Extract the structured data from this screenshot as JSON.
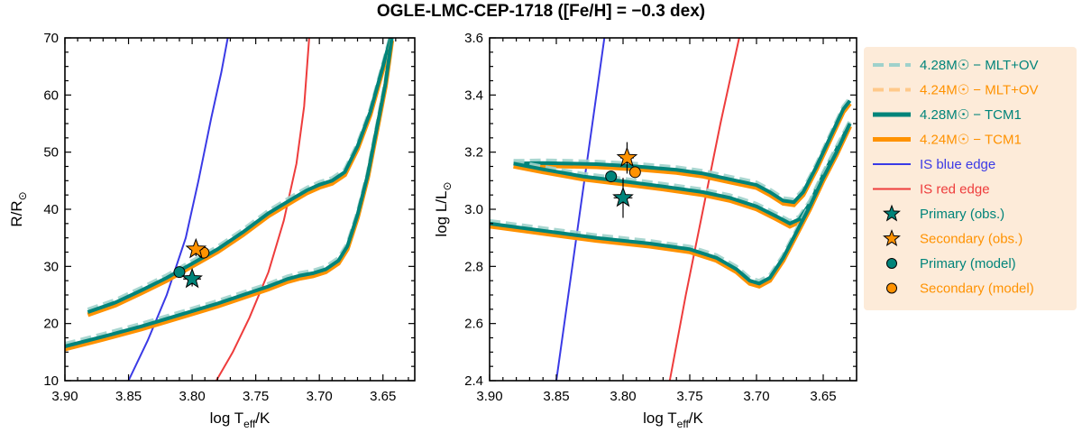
{
  "title": "OGLE-LMC-CEP-1718 ([Fe/H] = −0.3 dex)",
  "colors": {
    "teal": "#00847a",
    "teal_dash": "#9fd1cb",
    "orange": "#ff9200",
    "orange_dash": "#ffc98a",
    "blue_edge": "#3a3ae6",
    "red_edge": "#ee3c3c",
    "legend_bg": "#fdebd9"
  },
  "legend": [
    {
      "label": "4.28M☉ − MLT+OV",
      "style": "dashed",
      "color": "teal_dash",
      "text_color": "teal"
    },
    {
      "label": "4.24M☉ − MLT+OV",
      "style": "dashed",
      "color": "orange_dash",
      "text_color": "orange"
    },
    {
      "label": "4.28M☉ − TCM1",
      "style": "solid-thick",
      "color": "teal",
      "text_color": "teal"
    },
    {
      "label": "4.24M☉ − TCM1",
      "style": "solid-thick",
      "color": "orange",
      "text_color": "orange"
    },
    {
      "label": "IS blue edge",
      "style": "solid-thin",
      "color": "blue_edge",
      "text_color": "blue_edge"
    },
    {
      "label": "IS red edge",
      "style": "solid-thin",
      "color": "red_edge",
      "text_color": "red_edge"
    },
    {
      "label": "Primary (obs.)",
      "style": "star",
      "color": "teal",
      "text_color": "teal"
    },
    {
      "label": "Secondary (obs.)",
      "style": "star",
      "color": "orange",
      "text_color": "orange"
    },
    {
      "label": "Primary (model)",
      "style": "circle",
      "color": "teal",
      "text_color": "teal"
    },
    {
      "label": "Secondary (model)",
      "style": "circle",
      "color": "orange",
      "text_color": "orange"
    }
  ],
  "chart_data": [
    {
      "type": "line",
      "id": "radius",
      "xlabel_main": "log T",
      "xlabel_sub": "eff",
      "xlabel_tail": "/K",
      "ylabel_main": "R/R",
      "ylabel_sub": "⊙",
      "xlim": [
        3.9,
        3.625
      ],
      "ylim": [
        10,
        70
      ],
      "xticks": [
        3.9,
        3.85,
        3.8,
        3.75,
        3.7,
        3.65
      ],
      "xtick_labels": [
        "3.90",
        "3.85",
        "3.80",
        "3.75",
        "3.70",
        "3.65"
      ],
      "yticks": [
        10,
        20,
        30,
        40,
        50,
        60,
        70
      ],
      "ytick_labels": [
        "10",
        "20",
        "30",
        "40",
        "50",
        "60",
        "70"
      ],
      "edges": {
        "blue": [
          [
            3.85,
            10
          ],
          [
            3.835,
            17
          ],
          [
            3.82,
            25
          ],
          [
            3.805,
            35
          ],
          [
            3.795,
            45
          ],
          [
            3.785,
            56
          ],
          [
            3.777,
            64
          ],
          [
            3.772,
            70
          ]
        ],
        "red": [
          [
            3.781,
            10
          ],
          [
            3.768,
            15
          ],
          [
            3.755,
            21
          ],
          [
            3.74,
            29
          ],
          [
            3.728,
            38
          ],
          [
            3.718,
            48
          ],
          [
            3.712,
            58
          ],
          [
            3.708,
            70
          ]
        ]
      },
      "tracks": {
        "upper": [
          [
            3.882,
            22.0
          ],
          [
            3.86,
            23.7
          ],
          [
            3.84,
            25.8
          ],
          [
            3.82,
            28.0
          ],
          [
            3.8,
            30.5
          ],
          [
            3.78,
            33.0
          ],
          [
            3.76,
            36.0
          ],
          [
            3.74,
            39.3
          ],
          [
            3.72,
            42.0
          ],
          [
            3.71,
            43.3
          ],
          [
            3.7,
            44.3
          ],
          [
            3.69,
            45.0
          ],
          [
            3.68,
            46.5
          ],
          [
            3.67,
            51.0
          ],
          [
            3.66,
            57.0
          ],
          [
            3.65,
            65.0
          ],
          [
            3.644,
            70.0
          ]
        ],
        "lower": [
          [
            3.9,
            16.0
          ],
          [
            3.87,
            17.7
          ],
          [
            3.84,
            19.5
          ],
          [
            3.81,
            21.5
          ],
          [
            3.78,
            23.5
          ],
          [
            3.76,
            25.0
          ],
          [
            3.74,
            26.5
          ],
          [
            3.725,
            27.8
          ],
          [
            3.715,
            28.4
          ],
          [
            3.705,
            28.8
          ],
          [
            3.695,
            29.5
          ],
          [
            3.685,
            31.0
          ],
          [
            3.678,
            33.5
          ],
          [
            3.67,
            39.0
          ],
          [
            3.662,
            46.0
          ],
          [
            3.655,
            54.0
          ],
          [
            3.648,
            62.0
          ],
          [
            3.643,
            70.0
          ]
        ]
      },
      "observations": {
        "primary": {
          "x": 3.8,
          "y": 27.8,
          "xerr": 0.007,
          "yerr": 1.3
        },
        "secondary": {
          "x": 3.797,
          "y": 33.0,
          "xerr": 0.005,
          "yerr": 1.2
        }
      },
      "models": {
        "primary": {
          "x": 3.81,
          "y": 29.0
        },
        "secondary": {
          "x": 3.791,
          "y": 32.4
        }
      }
    },
    {
      "type": "line",
      "id": "luminosity",
      "xlabel_main": "log T",
      "xlabel_sub": "eff",
      "xlabel_tail": "/K",
      "ylabel_main": "log L/L",
      "ylabel_sub": "⊙",
      "xlim": [
        3.9,
        3.625
      ],
      "ylim": [
        2.4,
        3.6
      ],
      "xticks": [
        3.9,
        3.85,
        3.8,
        3.75,
        3.7,
        3.65
      ],
      "xtick_labels": [
        "3.90",
        "3.85",
        "3.80",
        "3.75",
        "3.70",
        "3.65"
      ],
      "yticks": [
        2.4,
        2.6,
        2.8,
        3.0,
        3.2,
        3.4,
        3.6
      ],
      "ytick_labels": [
        "2.4",
        "2.6",
        "2.8",
        "3.0",
        "3.2",
        "3.4",
        "3.6"
      ],
      "edges": {
        "blue": [
          [
            3.85,
            2.4
          ],
          [
            3.841,
            2.7
          ],
          [
            3.832,
            3.0
          ],
          [
            3.823,
            3.3
          ],
          [
            3.814,
            3.6
          ]
        ],
        "red": [
          [
            3.765,
            2.4
          ],
          [
            3.753,
            2.7
          ],
          [
            3.74,
            3.0
          ],
          [
            3.727,
            3.3
          ],
          [
            3.713,
            3.6
          ]
        ]
      },
      "tracks": {
        "upper": [
          [
            3.882,
            3.16
          ],
          [
            3.86,
            3.162
          ],
          [
            3.82,
            3.158
          ],
          [
            3.79,
            3.15
          ],
          [
            3.76,
            3.138
          ],
          [
            3.74,
            3.125
          ],
          [
            3.72,
            3.105
          ],
          [
            3.7,
            3.085
          ],
          [
            3.69,
            3.06
          ],
          [
            3.68,
            3.03
          ],
          [
            3.672,
            3.025
          ],
          [
            3.665,
            3.06
          ],
          [
            3.655,
            3.15
          ],
          [
            3.645,
            3.25
          ],
          [
            3.635,
            3.35
          ],
          [
            3.63,
            3.38
          ]
        ],
        "loop": [
          [
            3.882,
            3.16
          ],
          [
            3.86,
            3.14
          ],
          [
            3.83,
            3.115
          ],
          [
            3.8,
            3.098
          ],
          [
            3.77,
            3.08
          ],
          [
            3.74,
            3.06
          ],
          [
            3.72,
            3.04
          ],
          [
            3.7,
            3.01
          ],
          [
            3.685,
            2.975
          ],
          [
            3.675,
            2.95
          ],
          [
            3.668,
            2.965
          ],
          [
            3.66,
            3.02
          ],
          [
            3.65,
            3.12
          ],
          [
            3.64,
            3.21
          ],
          [
            3.63,
            3.3
          ]
        ],
        "lower": [
          [
            3.9,
            2.95
          ],
          [
            3.86,
            2.925
          ],
          [
            3.82,
            2.9
          ],
          [
            3.78,
            2.88
          ],
          [
            3.75,
            2.86
          ],
          [
            3.73,
            2.83
          ],
          [
            3.715,
            2.79
          ],
          [
            3.705,
            2.75
          ],
          [
            3.698,
            2.74
          ],
          [
            3.69,
            2.76
          ],
          [
            3.68,
            2.83
          ],
          [
            3.67,
            2.92
          ],
          [
            3.66,
            3.01
          ],
          [
            3.65,
            3.11
          ],
          [
            3.64,
            3.2
          ],
          [
            3.63,
            3.3
          ]
        ]
      },
      "observations": {
        "primary": {
          "x": 3.8,
          "y": 3.04,
          "xerr": 0.007,
          "yerr": 0.07
        },
        "secondary": {
          "x": 3.797,
          "y": 3.18,
          "xerr": 0.005,
          "yerr": 0.055
        }
      },
      "models": {
        "primary": {
          "x": 3.809,
          "y": 3.115
        },
        "secondary": {
          "x": 3.791,
          "y": 3.13
        }
      }
    }
  ]
}
